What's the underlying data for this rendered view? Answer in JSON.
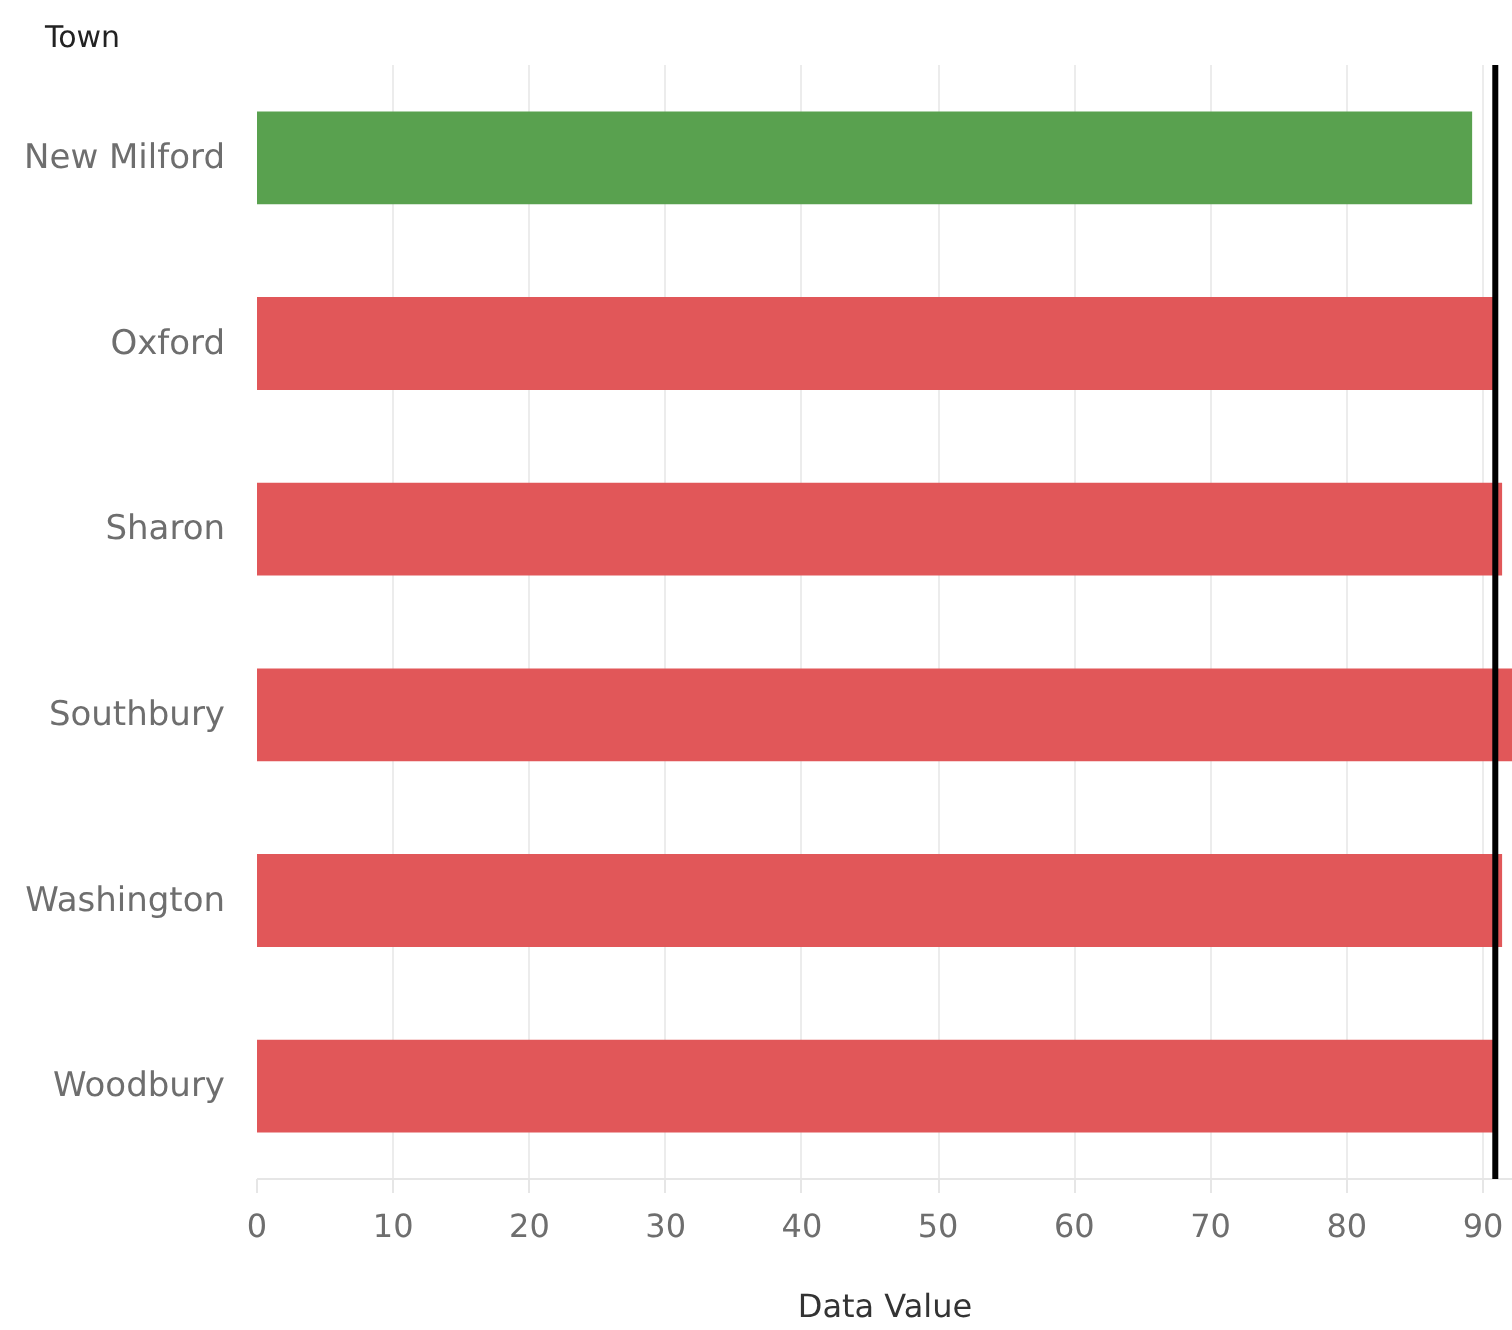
{
  "chart_data": {
    "type": "bar",
    "orientation": "horizontal",
    "ylabel": "Town",
    "xlabel": "Data Value",
    "categories": [
      "New Milford",
      "Oxford",
      "Sharon",
      "Southbury",
      "Washington",
      "Woodbury"
    ],
    "values": [
      89.2,
      90.8,
      91.4,
      92.2,
      91.4,
      90.8
    ],
    "colors": [
      "#59a14f",
      "#e15759",
      "#e15759",
      "#e15759",
      "#e15759",
      "#e15759"
    ],
    "xlim": [
      0,
      92.2
    ],
    "xticks": [
      0,
      10,
      20,
      30,
      40,
      50,
      60,
      70,
      80,
      90
    ],
    "grid": "x",
    "ref_lines": [
      {
        "axis": "x",
        "value": 90.9,
        "color": "#000000"
      }
    ]
  }
}
